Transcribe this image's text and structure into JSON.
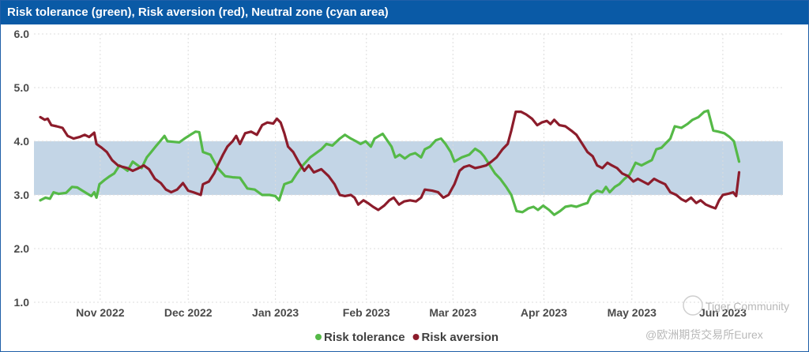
{
  "chart_data": {
    "type": "line",
    "title": "Risk tolerance (green), Risk aversion (red), Neutral zone (cyan area)",
    "ylim": [
      1.0,
      6.0
    ],
    "yticks": [
      "1.0",
      "2.0",
      "3.0",
      "4.0",
      "5.0",
      "6.0"
    ],
    "xticks": [
      {
        "label": "Nov 2022",
        "t": 0.081
      },
      {
        "label": "Dec 2022",
        "t": 0.2
      },
      {
        "label": "Jan 2023",
        "t": 0.318
      },
      {
        "label": "Feb 2023",
        "t": 0.441
      },
      {
        "label": "Mar 2023",
        "t": 0.558
      },
      {
        "label": "Apr 2023",
        "t": 0.681
      },
      {
        "label": "May 2023",
        "t": 0.8
      },
      {
        "label": "Jun 2023",
        "t": 0.923
      }
    ],
    "neutral_zone": {
      "low": 3.0,
      "high": 4.0,
      "color": "#c3d5e6"
    },
    "grid": true,
    "legend_position": "bottom",
    "series": [
      {
        "name": "Risk tolerance",
        "color": "#55b947",
        "points": [
          [
            0.0,
            2.9
          ],
          [
            0.007,
            2.95
          ],
          [
            0.013,
            2.93
          ],
          [
            0.018,
            3.05
          ],
          [
            0.025,
            3.02
          ],
          [
            0.035,
            3.04
          ],
          [
            0.043,
            3.15
          ],
          [
            0.05,
            3.14
          ],
          [
            0.057,
            3.08
          ],
          [
            0.064,
            3.02
          ],
          [
            0.069,
            2.98
          ],
          [
            0.073,
            3.05
          ],
          [
            0.076,
            2.95
          ],
          [
            0.08,
            3.2
          ],
          [
            0.087,
            3.28
          ],
          [
            0.094,
            3.35
          ],
          [
            0.1,
            3.4
          ],
          [
            0.107,
            3.55
          ],
          [
            0.113,
            3.5
          ],
          [
            0.118,
            3.45
          ],
          [
            0.125,
            3.62
          ],
          [
            0.131,
            3.56
          ],
          [
            0.137,
            3.5
          ],
          [
            0.144,
            3.7
          ],
          [
            0.15,
            3.8
          ],
          [
            0.157,
            3.92
          ],
          [
            0.162,
            4.0
          ],
          [
            0.168,
            4.1
          ],
          [
            0.172,
            4.0
          ],
          [
            0.18,
            3.99
          ],
          [
            0.188,
            3.98
          ],
          [
            0.195,
            4.05
          ],
          [
            0.203,
            4.12
          ],
          [
            0.21,
            4.18
          ],
          [
            0.215,
            4.17
          ],
          [
            0.22,
            3.8
          ],
          [
            0.23,
            3.75
          ],
          [
            0.24,
            3.5
          ],
          [
            0.25,
            3.35
          ],
          [
            0.26,
            3.33
          ],
          [
            0.27,
            3.32
          ],
          [
            0.28,
            3.12
          ],
          [
            0.29,
            3.1
          ],
          [
            0.3,
            3.0
          ],
          [
            0.31,
            3.0
          ],
          [
            0.318,
            2.98
          ],
          [
            0.323,
            2.9
          ],
          [
            0.33,
            3.2
          ],
          [
            0.34,
            3.25
          ],
          [
            0.347,
            3.4
          ],
          [
            0.355,
            3.55
          ],
          [
            0.365,
            3.7
          ],
          [
            0.375,
            3.8
          ],
          [
            0.38,
            3.85
          ],
          [
            0.387,
            3.95
          ],
          [
            0.395,
            3.92
          ],
          [
            0.405,
            4.05
          ],
          [
            0.412,
            4.12
          ],
          [
            0.42,
            4.05
          ],
          [
            0.427,
            4.0
          ],
          [
            0.433,
            3.95
          ],
          [
            0.44,
            4.0
          ],
          [
            0.447,
            3.9
          ],
          [
            0.452,
            4.05
          ],
          [
            0.458,
            4.1
          ],
          [
            0.463,
            4.14
          ],
          [
            0.47,
            4.0
          ],
          [
            0.475,
            3.9
          ],
          [
            0.48,
            3.7
          ],
          [
            0.486,
            3.75
          ],
          [
            0.493,
            3.68
          ],
          [
            0.5,
            3.75
          ],
          [
            0.507,
            3.78
          ],
          [
            0.515,
            3.7
          ],
          [
            0.52,
            3.85
          ],
          [
            0.527,
            3.9
          ],
          [
            0.535,
            4.02
          ],
          [
            0.542,
            4.05
          ],
          [
            0.548,
            3.95
          ],
          [
            0.555,
            3.8
          ],
          [
            0.56,
            3.62
          ],
          [
            0.57,
            3.7
          ],
          [
            0.58,
            3.75
          ],
          [
            0.588,
            3.86
          ],
          [
            0.595,
            3.8
          ],
          [
            0.6,
            3.72
          ],
          [
            0.608,
            3.55
          ],
          [
            0.615,
            3.4
          ],
          [
            0.622,
            3.3
          ],
          [
            0.63,
            3.15
          ],
          [
            0.637,
            3.0
          ],
          [
            0.644,
            2.7
          ],
          [
            0.652,
            2.68
          ],
          [
            0.66,
            2.75
          ],
          [
            0.667,
            2.78
          ],
          [
            0.673,
            2.72
          ],
          [
            0.68,
            2.8
          ],
          [
            0.688,
            2.72
          ],
          [
            0.695,
            2.63
          ],
          [
            0.703,
            2.7
          ],
          [
            0.71,
            2.78
          ],
          [
            0.718,
            2.8
          ],
          [
            0.725,
            2.78
          ],
          [
            0.733,
            2.82
          ],
          [
            0.74,
            2.85
          ],
          [
            0.745,
            3.0
          ],
          [
            0.753,
            3.08
          ],
          [
            0.76,
            3.05
          ],
          [
            0.765,
            3.15
          ],
          [
            0.77,
            3.05
          ],
          [
            0.777,
            3.15
          ],
          [
            0.783,
            3.2
          ],
          [
            0.79,
            3.3
          ],
          [
            0.797,
            3.38
          ],
          [
            0.805,
            3.6
          ],
          [
            0.813,
            3.55
          ],
          [
            0.82,
            3.6
          ],
          [
            0.827,
            3.65
          ],
          [
            0.833,
            3.85
          ],
          [
            0.84,
            3.88
          ],
          [
            0.845,
            3.95
          ],
          [
            0.852,
            4.05
          ],
          [
            0.858,
            4.28
          ],
          [
            0.867,
            4.25
          ],
          [
            0.875,
            4.32
          ],
          [
            0.882,
            4.4
          ],
          [
            0.89,
            4.45
          ],
          [
            0.898,
            4.55
          ],
          [
            0.903,
            4.57
          ],
          [
            0.91,
            4.2
          ],
          [
            0.917,
            4.18
          ],
          [
            0.925,
            4.15
          ],
          [
            0.932,
            4.08
          ],
          [
            0.938,
            4.0
          ],
          [
            0.945,
            3.62
          ]
        ]
      },
      {
        "name": "Risk aversion",
        "color": "#8c1c2b",
        "points": [
          [
            0.0,
            4.45
          ],
          [
            0.006,
            4.4
          ],
          [
            0.01,
            4.42
          ],
          [
            0.015,
            4.3
          ],
          [
            0.022,
            4.28
          ],
          [
            0.03,
            4.25
          ],
          [
            0.037,
            4.1
          ],
          [
            0.045,
            4.05
          ],
          [
            0.053,
            4.08
          ],
          [
            0.06,
            4.12
          ],
          [
            0.066,
            4.08
          ],
          [
            0.073,
            4.16
          ],
          [
            0.076,
            3.95
          ],
          [
            0.083,
            3.88
          ],
          [
            0.09,
            3.8
          ],
          [
            0.097,
            3.65
          ],
          [
            0.105,
            3.55
          ],
          [
            0.112,
            3.52
          ],
          [
            0.118,
            3.5
          ],
          [
            0.125,
            3.45
          ],
          [
            0.133,
            3.5
          ],
          [
            0.14,
            3.55
          ],
          [
            0.147,
            3.48
          ],
          [
            0.155,
            3.3
          ],
          [
            0.163,
            3.22
          ],
          [
            0.17,
            3.1
          ],
          [
            0.177,
            3.05
          ],
          [
            0.185,
            3.1
          ],
          [
            0.193,
            3.22
          ],
          [
            0.2,
            3.08
          ],
          [
            0.207,
            3.05
          ],
          [
            0.213,
            3.02
          ],
          [
            0.217,
            3.0
          ],
          [
            0.22,
            3.2
          ],
          [
            0.228,
            3.25
          ],
          [
            0.235,
            3.4
          ],
          [
            0.24,
            3.55
          ],
          [
            0.247,
            3.75
          ],
          [
            0.253,
            3.9
          ],
          [
            0.26,
            4.0
          ],
          [
            0.265,
            4.1
          ],
          [
            0.27,
            3.95
          ],
          [
            0.277,
            4.15
          ],
          [
            0.285,
            4.18
          ],
          [
            0.293,
            4.12
          ],
          [
            0.3,
            4.3
          ],
          [
            0.307,
            4.35
          ],
          [
            0.315,
            4.33
          ],
          [
            0.32,
            4.42
          ],
          [
            0.325,
            4.35
          ],
          [
            0.33,
            4.15
          ],
          [
            0.335,
            3.9
          ],
          [
            0.342,
            3.8
          ],
          [
            0.35,
            3.6
          ],
          [
            0.357,
            3.45
          ],
          [
            0.363,
            3.55
          ],
          [
            0.37,
            3.42
          ],
          [
            0.38,
            3.48
          ],
          [
            0.39,
            3.35
          ],
          [
            0.398,
            3.2
          ],
          [
            0.405,
            3.0
          ],
          [
            0.412,
            2.98
          ],
          [
            0.42,
            3.0
          ],
          [
            0.425,
            2.95
          ],
          [
            0.43,
            2.82
          ],
          [
            0.437,
            2.9
          ],
          [
            0.443,
            2.85
          ],
          [
            0.45,
            2.78
          ],
          [
            0.457,
            2.72
          ],
          [
            0.465,
            2.8
          ],
          [
            0.472,
            2.9
          ],
          [
            0.478,
            2.95
          ],
          [
            0.485,
            2.82
          ],
          [
            0.492,
            2.88
          ],
          [
            0.5,
            2.9
          ],
          [
            0.508,
            2.88
          ],
          [
            0.515,
            2.95
          ],
          [
            0.52,
            3.1
          ],
          [
            0.53,
            3.08
          ],
          [
            0.538,
            3.05
          ],
          [
            0.545,
            2.95
          ],
          [
            0.552,
            3.0
          ],
          [
            0.56,
            3.2
          ],
          [
            0.567,
            3.45
          ],
          [
            0.573,
            3.52
          ],
          [
            0.58,
            3.55
          ],
          [
            0.588,
            3.5
          ],
          [
            0.595,
            3.52
          ],
          [
            0.603,
            3.55
          ],
          [
            0.61,
            3.62
          ],
          [
            0.617,
            3.7
          ],
          [
            0.625,
            3.85
          ],
          [
            0.632,
            3.95
          ],
          [
            0.637,
            4.2
          ],
          [
            0.643,
            4.55
          ],
          [
            0.65,
            4.55
          ],
          [
            0.657,
            4.5
          ],
          [
            0.665,
            4.42
          ],
          [
            0.672,
            4.3
          ],
          [
            0.678,
            4.35
          ],
          [
            0.685,
            4.38
          ],
          [
            0.69,
            4.32
          ],
          [
            0.695,
            4.4
          ],
          [
            0.702,
            4.3
          ],
          [
            0.71,
            4.28
          ],
          [
            0.718,
            4.2
          ],
          [
            0.725,
            4.12
          ],
          [
            0.733,
            3.95
          ],
          [
            0.74,
            3.8
          ],
          [
            0.747,
            3.72
          ],
          [
            0.753,
            3.55
          ],
          [
            0.76,
            3.5
          ],
          [
            0.767,
            3.6
          ],
          [
            0.773,
            3.55
          ],
          [
            0.78,
            3.5
          ],
          [
            0.787,
            3.4
          ],
          [
            0.795,
            3.35
          ],
          [
            0.802,
            3.25
          ],
          [
            0.808,
            3.3
          ],
          [
            0.815,
            3.25
          ],
          [
            0.822,
            3.2
          ],
          [
            0.83,
            3.3
          ],
          [
            0.837,
            3.25
          ],
          [
            0.845,
            3.2
          ],
          [
            0.852,
            3.05
          ],
          [
            0.86,
            3.0
          ],
          [
            0.867,
            2.92
          ],
          [
            0.873,
            2.88
          ],
          [
            0.88,
            2.95
          ],
          [
            0.887,
            2.85
          ],
          [
            0.893,
            2.9
          ],
          [
            0.9,
            2.82
          ],
          [
            0.907,
            2.78
          ],
          [
            0.913,
            2.75
          ],
          [
            0.918,
            2.9
          ],
          [
            0.923,
            3.0
          ],
          [
            0.93,
            3.02
          ],
          [
            0.937,
            3.05
          ],
          [
            0.941,
            2.98
          ],
          [
            0.945,
            3.42
          ]
        ]
      }
    ]
  },
  "watermark": {
    "top": "Tiger Community",
    "bottom": "@欧洲期货交易所Eurex"
  }
}
